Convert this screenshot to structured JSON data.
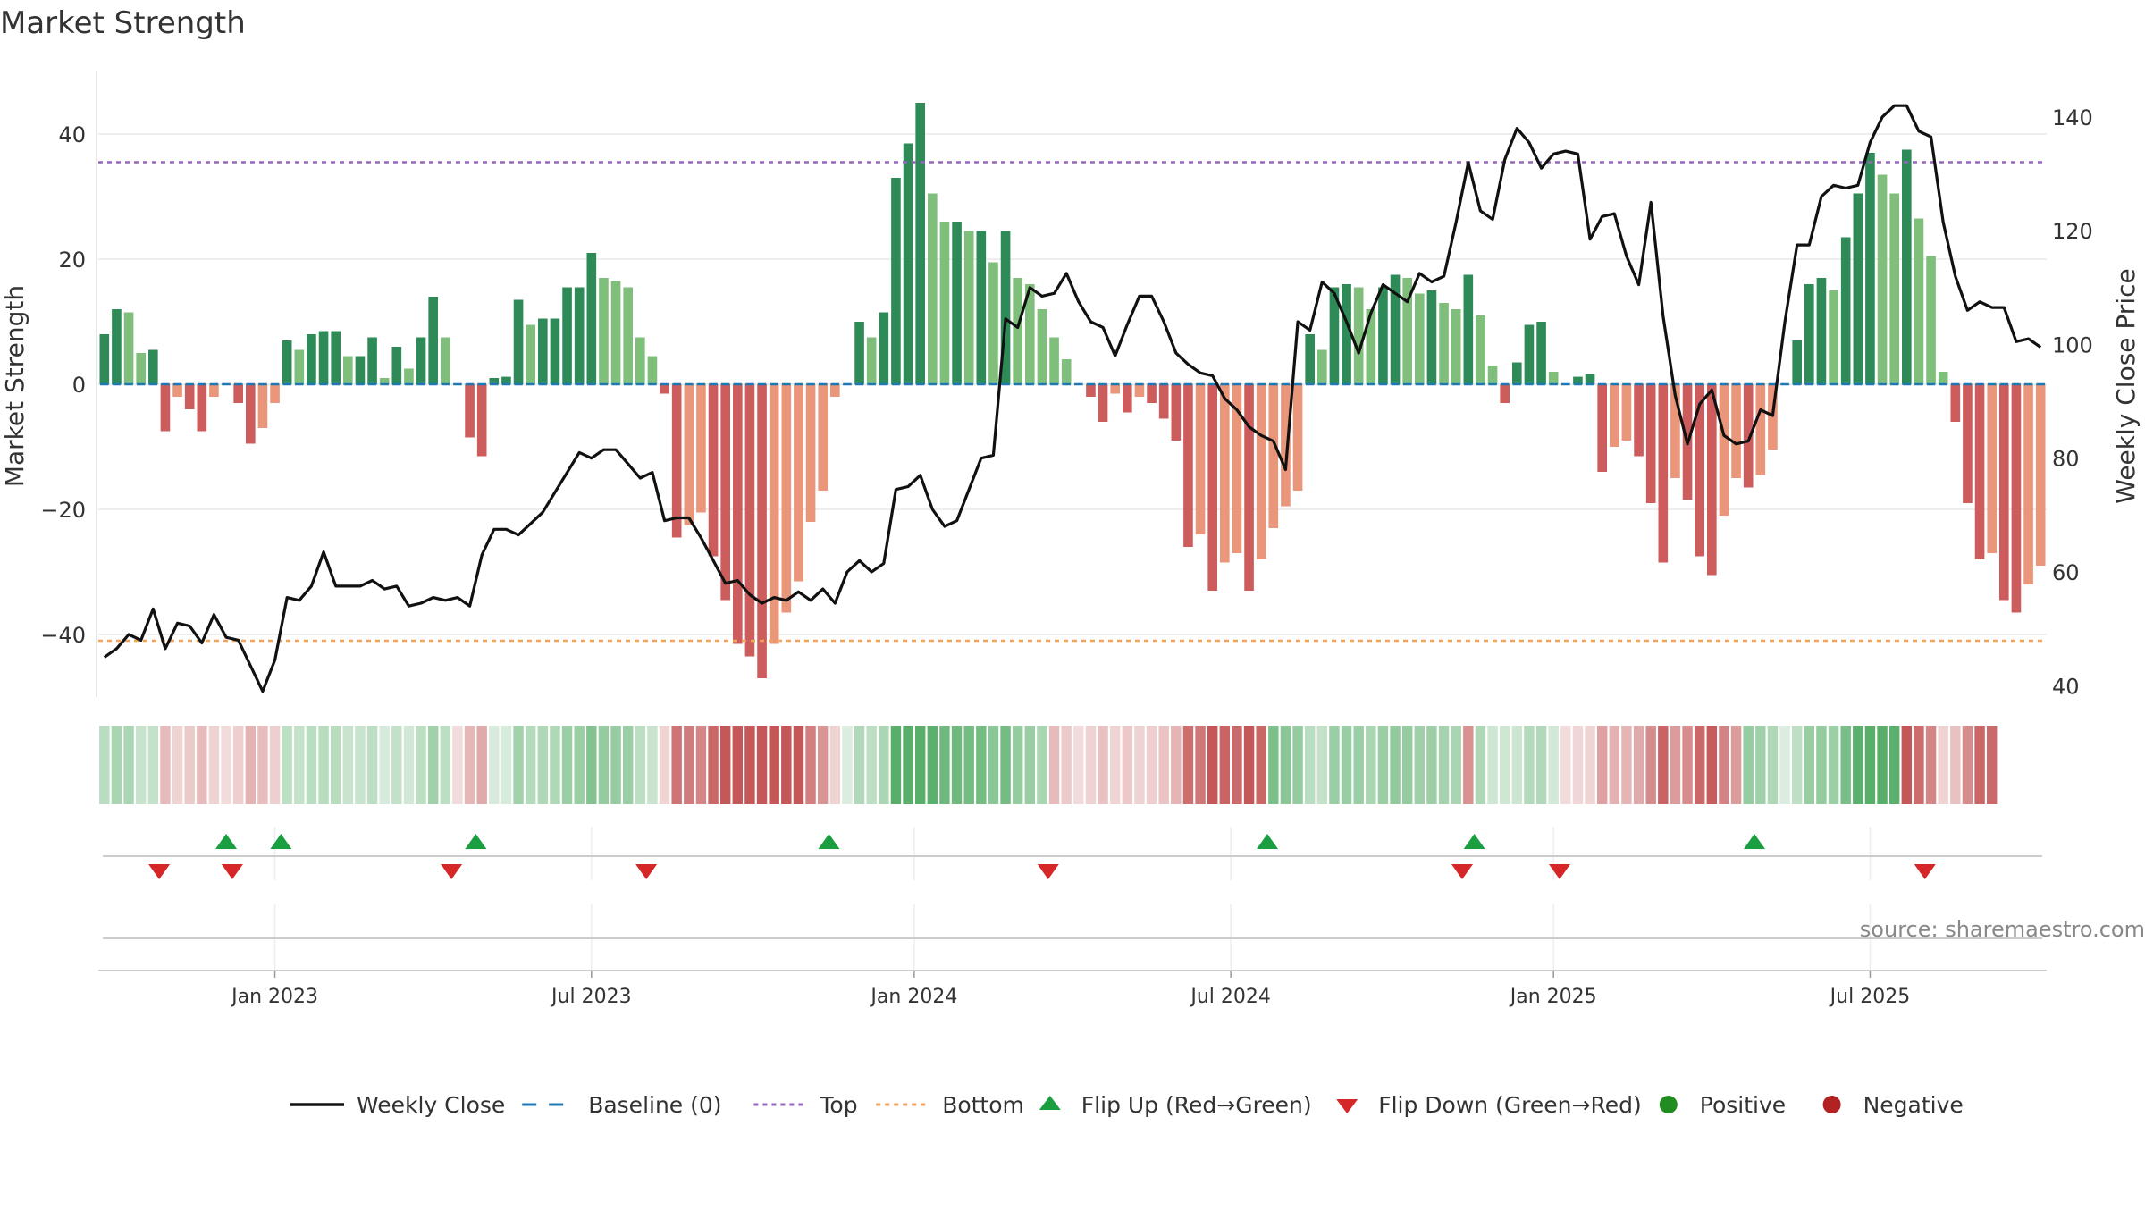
{
  "chart_data": {
    "type": "bar",
    "title": "Market Strength",
    "ylabel": "Market Strength",
    "y2label": "Weekly Close Price",
    "ylim": [
      -50,
      50
    ],
    "y2lim": [
      38,
      148
    ],
    "yticks": [
      -40,
      -20,
      0,
      20,
      40
    ],
    "y2ticks": [
      40,
      60,
      80,
      100,
      120,
      140
    ],
    "top_line": 35.5,
    "bottom_line": -41,
    "x_labels": [
      "Jan 2023",
      "Jul 2023",
      "Jan 2024",
      "Jul 2024",
      "Jan 2025",
      "Jul 2025"
    ],
    "x_label_weeks": [
      14.5,
      40.5,
      67,
      93,
      119.5,
      145.5
    ],
    "strength": [
      8,
      12,
      11.5,
      5,
      5.5,
      -7.5,
      -2,
      -4,
      -7.5,
      -2,
      0,
      -3,
      -9.5,
      -7,
      -3,
      7,
      5.5,
      8,
      8.5,
      8.5,
      4.5,
      4.5,
      7.5,
      1,
      6,
      2.5,
      7.5,
      14,
      7.5,
      0,
      -8.5,
      -11.5,
      1,
      1.2,
      13.5,
      9.5,
      10.5,
      10.5,
      15.5,
      15.5,
      21,
      17,
      16.5,
      15.5,
      7.5,
      4.5,
      -1.5,
      -24.5,
      -22.5,
      -20.5,
      -27.5,
      -34.5,
      -41.5,
      -43.5,
      -47,
      -41.5,
      -36.5,
      -31.5,
      -22,
      -17,
      -2,
      0,
      10,
      7.5,
      11.5,
      33,
      38.5,
      45,
      30.5,
      26,
      26,
      24.5,
      24.5,
      19.5,
      24.5,
      17,
      16,
      12,
      7.5,
      4,
      0,
      -2,
      -6,
      -1.5,
      -4.5,
      -2,
      -3,
      -5.5,
      -9,
      -26,
      -24,
      -33,
      -28.5,
      -27,
      -33,
      -28,
      -23,
      -19.5,
      -17,
      8,
      5.5,
      15.5,
      16,
      15.5,
      12,
      15.5,
      17.5,
      17,
      14.5,
      15,
      13,
      12,
      17.5,
      11,
      3,
      -3,
      3.5,
      9.5,
      10,
      2,
      0,
      1.2,
      1.6,
      -14,
      -10,
      -9,
      -11.5,
      -19,
      -28.5,
      -15,
      -18.5,
      -27.5,
      -30.5,
      -21,
      -15,
      -16.5,
      -14.5,
      -10.5,
      0,
      7,
      16,
      17,
      15,
      23.5,
      30.5,
      37,
      33.5,
      30.5,
      37.5,
      26.5,
      20.5,
      2,
      -6,
      -19,
      -28,
      -27,
      -34.5,
      -36.5,
      -32,
      -29
    ],
    "weekly_close": [
      45,
      46.5,
      49,
      48,
      53.5,
      46.5,
      51,
      50.5,
      47.5,
      52.5,
      48.5,
      48,
      43.5,
      39,
      44.5,
      55.5,
      55,
      57.5,
      63.5,
      57.5,
      57.5,
      57.5,
      58.5,
      57,
      57.5,
      54,
      54.5,
      55.5,
      55,
      55.5,
      54,
      63,
      67.5,
      67.5,
      66.5,
      68.5,
      70.5,
      74,
      77.5,
      81,
      80,
      81.5,
      81.5,
      79,
      76.5,
      77.5,
      69,
      69.5,
      69.5,
      66,
      62,
      58,
      58.5,
      56,
      54.5,
      55.5,
      55,
      56.5,
      55,
      57,
      54.5,
      60,
      62,
      60,
      61.5,
      74.5,
      75,
      77,
      71,
      68,
      69,
      74.5,
      80,
      80.5,
      104.5,
      103,
      110,
      108.5,
      109,
      112.5,
      107.5,
      104,
      103,
      98,
      103.5,
      108.5,
      108.5,
      104,
      98.5,
      96.5,
      95,
      94.5,
      90.5,
      88.5,
      85.5,
      84,
      83,
      78,
      104,
      102.5,
      111,
      109,
      104,
      98.5,
      105.5,
      110.5,
      109,
      107.5,
      112.5,
      111,
      112,
      121.5,
      132,
      123.5,
      122,
      132.5,
      138,
      135.5,
      131,
      133.5,
      134,
      133.5,
      118.5,
      122.5,
      123,
      115.5,
      110.5,
      125,
      105,
      91,
      82.5,
      89.5,
      92,
      84,
      82.5,
      83,
      88.5,
      87.5,
      104,
      117.5,
      117.5,
      126,
      128,
      127.5,
      128,
      135.5,
      140,
      142,
      142,
      137.5,
      136.5,
      121.5,
      112,
      106,
      107.5,
      106.5,
      106.5,
      100.5,
      101,
      99.5
    ],
    "trend_strip": [
      1,
      1,
      1,
      1,
      1,
      -1,
      -1,
      -1,
      -1,
      -1,
      -1,
      -1,
      -1,
      -1,
      -1,
      1,
      1,
      1,
      1,
      1,
      1,
      1,
      1,
      1,
      1,
      1,
      1,
      1,
      1,
      -1,
      -1,
      -1,
      1,
      1,
      1,
      1,
      1,
      1,
      1,
      1,
      1,
      1,
      1,
      1,
      1,
      1,
      -1,
      -1,
      -1,
      -1,
      -1,
      -1,
      -1,
      -1,
      -1,
      -1,
      -1,
      -1,
      -1,
      -1,
      -1,
      1,
      1,
      1,
      1,
      1,
      1,
      1,
      1,
      1,
      1,
      1,
      1,
      1,
      1,
      1,
      1,
      1,
      -1,
      -1,
      -1,
      -1,
      -1,
      -1,
      -1,
      -1,
      -1,
      -1,
      -1,
      -1,
      -1,
      -1,
      -1,
      -1,
      -1,
      -1,
      1,
      1,
      1,
      1,
      1,
      1,
      1,
      1,
      1,
      1,
      1,
      1,
      1,
      1,
      1,
      1,
      -1,
      1,
      1,
      1,
      1,
      1,
      1,
      1,
      -1,
      -1,
      -1,
      -1,
      -1,
      -1,
      -1,
      -1,
      -1,
      -1,
      -1,
      -1,
      -1,
      -1,
      -1,
      1,
      1,
      1,
      1,
      1,
      1,
      1,
      1,
      1,
      1,
      1,
      1,
      1,
      -1,
      -1,
      -1,
      -1,
      -1,
      -1,
      -1,
      -1
    ],
    "flip_up_weeks": [
      10.5,
      15,
      31,
      60,
      96,
      113,
      136
    ],
    "flip_down_weeks": [
      5,
      11,
      29,
      45,
      78,
      112,
      120,
      150
    ],
    "source_text": "source: sharemaestro.com",
    "legend": [
      {
        "label": "Weekly Close",
        "kind": "line",
        "color": "#111111"
      },
      {
        "label": "Baseline (0)",
        "kind": "dash",
        "color": "#1f77b4"
      },
      {
        "label": "Top",
        "kind": "dot",
        "color": "#9467bd"
      },
      {
        "label": "Bottom",
        "kind": "dot",
        "color": "#f0a35a"
      },
      {
        "label": "Flip Up (Red→Green)",
        "kind": "up",
        "color": "#1a9e3f"
      },
      {
        "label": "Flip Down (Green→Red)",
        "kind": "down",
        "color": "#d62728"
      },
      {
        "label": "Positive",
        "kind": "dot-circle",
        "color": "#228b22"
      },
      {
        "label": "Negative",
        "kind": "dot-circle",
        "color": "#b22222"
      }
    ],
    "colors": {
      "pos_dark": "#2e8b57",
      "pos_light": "#7fbf7b",
      "neg_dark": "#cd5c5c",
      "neg_light": "#e9967a",
      "price": "#111111",
      "baseline": "#1f77b4",
      "top": "#9467bd",
      "bottom": "#f0a35a",
      "grid": "#e8e8e8",
      "axis": "#cccccc",
      "text": "#333333"
    }
  }
}
